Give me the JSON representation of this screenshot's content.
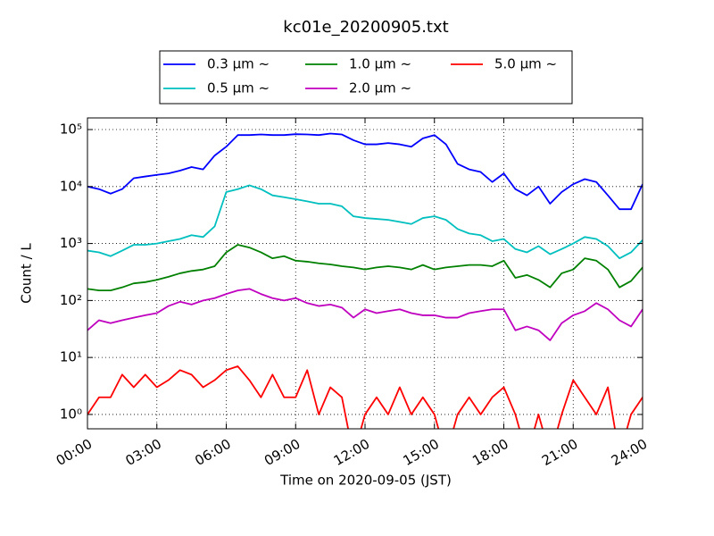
{
  "chart_data": {
    "type": "line",
    "title": "kc01e_20200905.txt",
    "x_label": "Time on 2020-09-05 (JST)",
    "y_label": "Count / L",
    "x": [
      0,
      0.5,
      1,
      1.5,
      2,
      2.5,
      3,
      3.5,
      4,
      4.5,
      5,
      5.5,
      6,
      6.5,
      7,
      7.5,
      8,
      8.5,
      9,
      9.5,
      10,
      10.5,
      11,
      11.5,
      12,
      12.5,
      13,
      13.5,
      14,
      14.5,
      15,
      15.5,
      16,
      16.5,
      17,
      17.5,
      18,
      18.5,
      19,
      19.5,
      20,
      20.5,
      21,
      21.5,
      22,
      22.5,
      23,
      23.5,
      24
    ],
    "series": [
      {
        "name": "0.3 μm ~",
        "color": "#0000ff",
        "values": [
          10000,
          9000,
          7500,
          9000,
          14000,
          15000,
          16000,
          17000,
          19000,
          22000,
          20000,
          35000,
          50000,
          80000,
          80000,
          82000,
          80000,
          80000,
          83000,
          82000,
          80000,
          85000,
          82000,
          65000,
          55000,
          55000,
          58000,
          55000,
          50000,
          70000,
          80000,
          55000,
          25000,
          20000,
          18000,
          12000,
          17000,
          9000,
          7000,
          10000,
          5000,
          8000,
          11000,
          13500,
          12000,
          7000,
          4000,
          4000,
          11000
        ]
      },
      {
        "name": "0.5 μm ~",
        "color": "#00bfbf",
        "values": [
          750,
          700,
          600,
          750,
          950,
          950,
          1000,
          1100,
          1200,
          1400,
          1300,
          2000,
          8000,
          9000,
          10500,
          9000,
          7000,
          6500,
          6000,
          5500,
          5000,
          5000,
          4500,
          3000,
          2800,
          2700,
          2600,
          2400,
          2200,
          2800,
          3000,
          2600,
          1800,
          1500,
          1400,
          1100,
          1200,
          800,
          700,
          900,
          650,
          800,
          1000,
          1300,
          1200,
          900,
          550,
          700,
          1150
        ]
      },
      {
        "name": "1.0 μm ~",
        "color": "#008000",
        "values": [
          160,
          150,
          150,
          170,
          200,
          210,
          230,
          260,
          300,
          330,
          350,
          400,
          700,
          950,
          850,
          700,
          550,
          600,
          500,
          480,
          450,
          430,
          400,
          380,
          350,
          380,
          400,
          380,
          350,
          420,
          350,
          380,
          400,
          420,
          420,
          400,
          500,
          250,
          280,
          230,
          170,
          300,
          350,
          550,
          500,
          350,
          170,
          220,
          380
        ]
      },
      {
        "name": "2.0 μm ~",
        "color": "#bf00bf",
        "values": [
          30,
          45,
          40,
          45,
          50,
          55,
          60,
          80,
          95,
          85,
          100,
          110,
          130,
          150,
          160,
          130,
          110,
          100,
          110,
          90,
          80,
          85,
          75,
          50,
          70,
          60,
          65,
          70,
          60,
          55,
          55,
          50,
          50,
          60,
          65,
          70,
          70,
          30,
          35,
          30,
          20,
          40,
          55,
          65,
          90,
          70,
          45,
          35,
          70
        ]
      },
      {
        "name": "5.0 μm ~",
        "color": "#ff0000",
        "values": [
          1,
          2,
          2,
          5,
          3,
          5,
          3,
          4,
          6,
          5,
          3,
          4,
          6,
          7,
          4,
          2,
          5,
          2,
          2,
          6,
          1,
          3,
          2,
          0,
          1,
          2,
          1,
          3,
          1,
          2,
          1,
          0,
          1,
          2,
          1,
          2,
          3,
          1,
          0,
          1,
          0,
          1,
          4,
          2,
          1,
          3,
          0,
          1,
          2
        ]
      }
    ],
    "xlim": [
      0,
      24
    ],
    "xticks": [
      {
        "value": 0,
        "label": "00:00"
      },
      {
        "value": 3,
        "label": "03:00"
      },
      {
        "value": 6,
        "label": "06:00"
      },
      {
        "value": 9,
        "label": "09:00"
      },
      {
        "value": 12,
        "label": "12:00"
      },
      {
        "value": 15,
        "label": "15:00"
      },
      {
        "value": 18,
        "label": "18:00"
      },
      {
        "value": 21,
        "label": "21:00"
      },
      {
        "value": 24,
        "label": "24:00"
      }
    ],
    "ylim": [
      0.56,
      160000
    ],
    "yticks": [
      {
        "value": 1,
        "label": "10⁰"
      },
      {
        "value": 10,
        "label": "10¹"
      },
      {
        "value": 100,
        "label": "10²"
      },
      {
        "value": 1000,
        "label": "10³"
      },
      {
        "value": 10000,
        "label": "10⁴"
      },
      {
        "value": 100000,
        "label": "10⁵"
      }
    ],
    "y_scale": "log",
    "grid": true,
    "legend": "top"
  }
}
